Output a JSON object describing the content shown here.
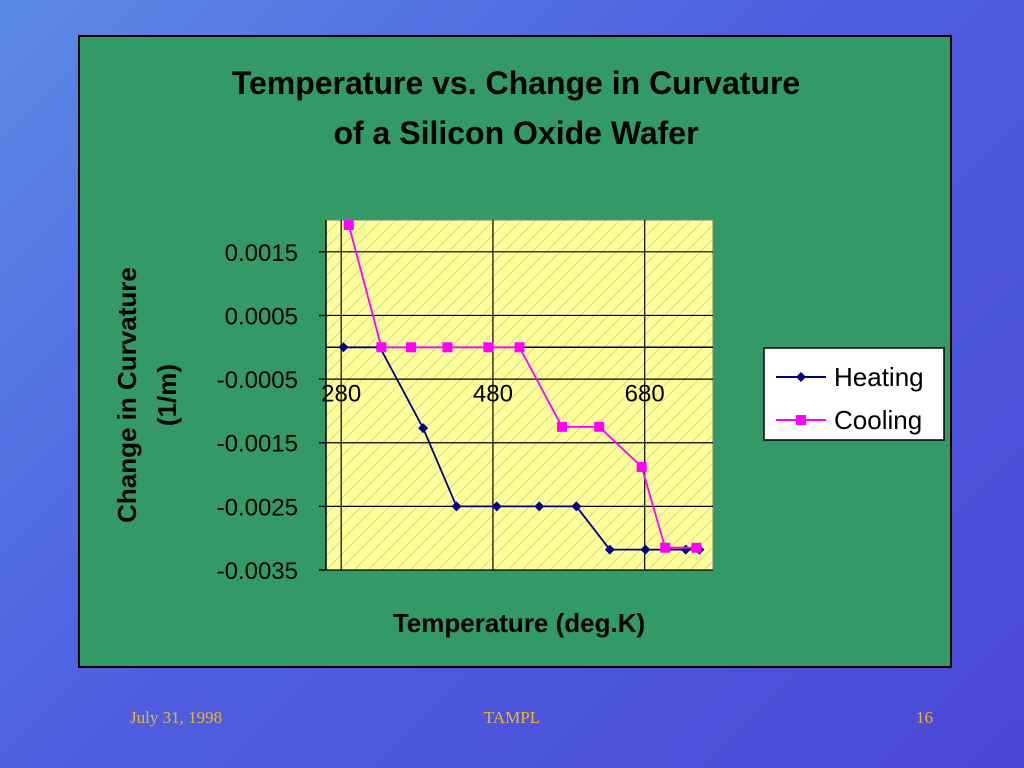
{
  "chart_data": {
    "type": "line",
    "title_lines": [
      "Temperature vs. Change in Curvature",
      "of a Silicon Oxide Wafer"
    ],
    "xlabel": "Temperature (deg.K)",
    "ylabel_lines": [
      "Change in Curvature",
      "(1/m)"
    ],
    "xlim": [
      260,
      770
    ],
    "ylim": [
      -0.0035,
      0.002
    ],
    "xticks": [
      280,
      480,
      680
    ],
    "xtick_labels": [
      "280",
      "480",
      "680"
    ],
    "yticks": [
      0.0015,
      0.0005,
      -0.0005,
      -0.0015,
      -0.0025,
      -0.0035
    ],
    "ytick_labels": [
      "0.0015",
      "0.0005",
      "-0.0005",
      "-0.0015",
      "-0.0025",
      "-0.0035"
    ],
    "x_axis_crosses_at": 0,
    "grid": true,
    "legend": "right",
    "series": [
      {
        "name": "Heating",
        "color": "#000080",
        "marker": "diamond",
        "x": [
          283,
          331,
          388,
          432,
          485,
          541,
          590,
          634,
          681,
          734,
          752
        ],
        "y": [
          0,
          0,
          -0.00127,
          -0.0025,
          -0.0025,
          -0.0025,
          -0.0025,
          -0.00318,
          -0.00318,
          -0.00318,
          -0.00318
        ]
      },
      {
        "name": "Cooling",
        "color": "#ff00ff",
        "marker": "square",
        "x": [
          290,
          333,
          372,
          420,
          474,
          515,
          571,
          620,
          676,
          707,
          748
        ],
        "y": [
          0.00192,
          0,
          0,
          0,
          0,
          0,
          -0.00125,
          -0.00125,
          -0.00188,
          -0.00315,
          -0.00315
        ]
      }
    ]
  },
  "footer": {
    "date": "July 31, 1998",
    "center": "TAMPL",
    "page": "16"
  },
  "colors": {
    "panel": "#339966",
    "plot_area": "#ffff99",
    "footer_text": "#e8b830"
  }
}
